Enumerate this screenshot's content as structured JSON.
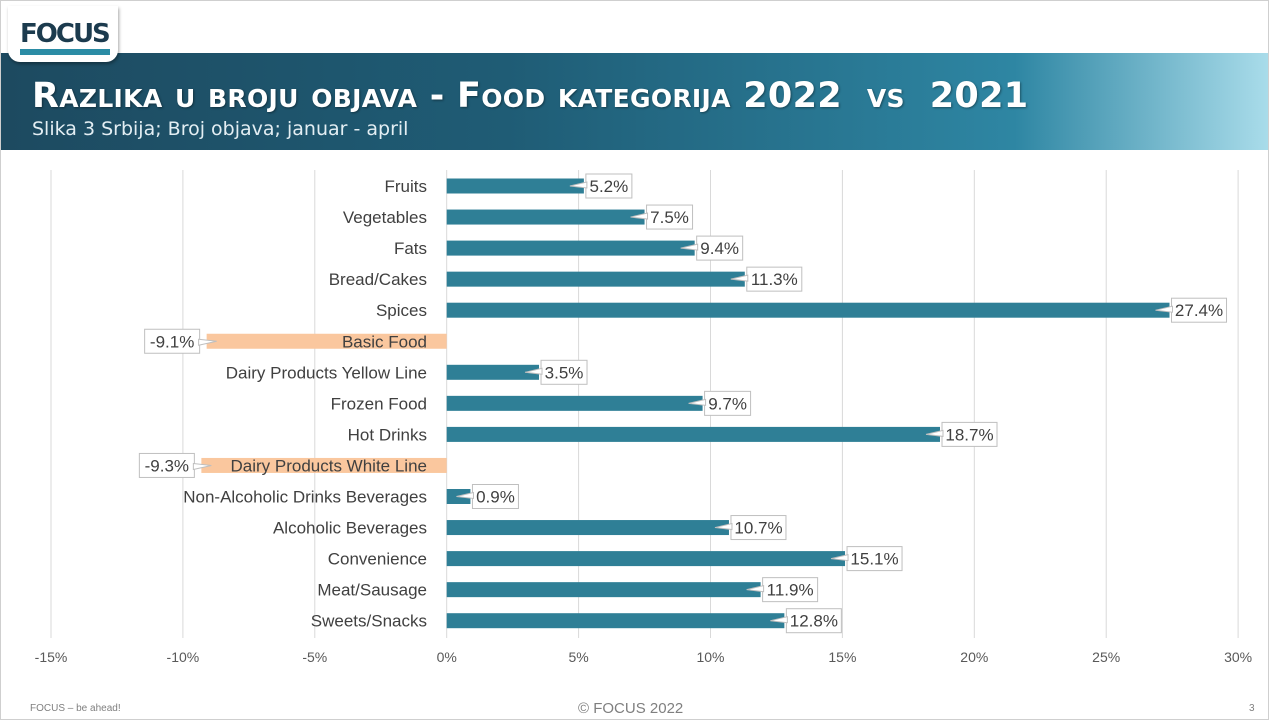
{
  "header": {
    "logo_text": "FOCUS",
    "title": "Razlika u broju objava - Food kategorija 2022  vs  2021",
    "subtitle": "Slika 3 Srbija; Broj objava; januar - april"
  },
  "footer": {
    "left": "FOCUS – be ahead!",
    "center": "© FOCUS 2022",
    "page": "3"
  },
  "colors": {
    "positive_bar": "#2f7f96",
    "negative_bar": "#fac79e",
    "banner_dark": "#1d4a60",
    "banner_light": "#a9dcea"
  },
  "chart_data": {
    "type": "bar",
    "orientation": "horizontal",
    "categories": [
      "Fruits",
      "Vegetables",
      "Fats",
      "Bread/Cakes",
      "Spices",
      "Basic Food",
      "Dairy Products Yellow Line",
      "Frozen Food",
      "Hot Drinks",
      "Dairy Products White Line",
      "Non-Alcoholic Drinks Beverages",
      "Alcoholic Beverages",
      "Convenience",
      "Meat/Sausage",
      "Sweets/Snacks"
    ],
    "values": [
      5.2,
      7.5,
      9.4,
      11.3,
      27.4,
      -9.1,
      3.5,
      9.7,
      18.7,
      -9.3,
      0.9,
      10.7,
      15.1,
      11.9,
      12.8
    ],
    "data_labels": [
      "5.2%",
      "7.5%",
      "9.4%",
      "11.3%",
      "27.4%",
      "-9.1%",
      "3.5%",
      "9.7%",
      "18.7%",
      "-9.3%",
      "0.9%",
      "10.7%",
      "15.1%",
      "11.9%",
      "12.8%"
    ],
    "xlim": [
      -15,
      30
    ],
    "x_ticks": [
      -15,
      -10,
      -5,
      0,
      5,
      10,
      15,
      20,
      25,
      30
    ],
    "x_tick_labels": [
      "-15%",
      "-10%",
      "-5%",
      "0%",
      "5%",
      "10%",
      "15%",
      "20%",
      "25%",
      "30%"
    ],
    "grid": true,
    "legend": "none"
  }
}
